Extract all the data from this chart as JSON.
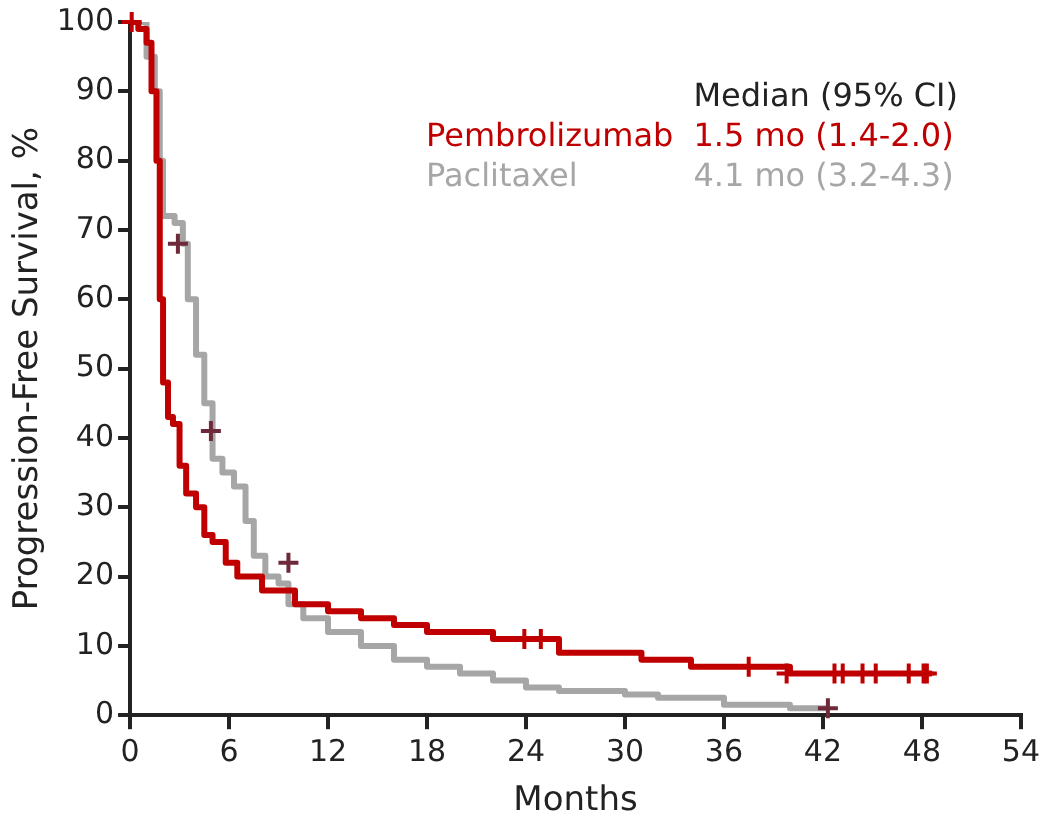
{
  "chart_data": {
    "type": "step",
    "xlabel": "Months",
    "ylabel": "Progression-Free Survival, %",
    "legend_title": "Median (95% CI)",
    "legend": "top right",
    "grid": false,
    "line_style": "solid",
    "marker": "none",
    "xlim": [
      0,
      54
    ],
    "xticks": [
      0,
      6,
      12,
      18,
      24,
      30,
      36,
      42,
      48,
      54
    ],
    "ylim": [
      0,
      100
    ],
    "yticks": [
      0,
      10,
      20,
      30,
      40,
      50,
      60,
      70,
      80,
      90,
      100
    ],
    "annotations": [
      "1.5 mo (1.4-2.0)",
      "4.1 mo (3.2-4.3)"
    ],
    "series": [
      {
        "name": "Pembrolizumab",
        "color": "#c00000",
        "x": [
          0,
          0.5,
          1.0,
          1.3,
          1.6,
          1.8,
          2.0,
          2.3,
          2.6,
          3.0,
          3.4,
          4.0,
          4.5,
          5.0,
          5.8,
          6.5,
          8.0,
          10,
          12,
          14,
          16,
          18,
          22,
          26,
          31,
          34,
          40,
          48.6
        ],
        "values": [
          100,
          99,
          97,
          90,
          80,
          60,
          48,
          43,
          42,
          36,
          32,
          30,
          26,
          25,
          22,
          20,
          18,
          16,
          15,
          14,
          13,
          12,
          11,
          9,
          8,
          7,
          6,
          6
        ]
      },
      {
        "name": "Paclitaxel",
        "color": "#a6a6a6",
        "x": [
          0,
          1.0,
          1.5,
          1.8,
          2.0,
          2.7,
          3.2,
          3.5,
          4.0,
          4.5,
          5.0,
          5.6,
          6.3,
          7.0,
          7.5,
          8.2,
          9.0,
          9.6,
          10.5,
          12,
          14,
          16,
          18,
          20,
          22,
          24,
          26,
          30,
          32,
          36,
          40,
          42.3
        ],
        "values": [
          100,
          95,
          90,
          80,
          72,
          71,
          68,
          60,
          52,
          45,
          37,
          35,
          33,
          28,
          23,
          20,
          19,
          16,
          14,
          12,
          10,
          8,
          7,
          6,
          5,
          4,
          3.5,
          3,
          2.5,
          1.5,
          1,
          1
        ]
      },
      {
        "type": "scatter",
        "marker": "cross",
        "color": "#c00000",
        "x": [
          0.1,
          23.9,
          24.9,
          37.5,
          39.8,
          42.7,
          43.2,
          44.4,
          45.2,
          47.2,
          48.1,
          48.3
        ],
        "values": [
          100,
          11,
          11,
          7,
          6,
          6,
          6,
          6,
          6,
          6,
          6,
          6
        ]
      },
      {
        "type": "scatter",
        "marker": "cross",
        "color": "#6e2a3a",
        "x": [
          2.9,
          4.9,
          9.6,
          42.3
        ],
        "values": [
          68,
          41,
          22,
          1
        ]
      }
    ]
  }
}
